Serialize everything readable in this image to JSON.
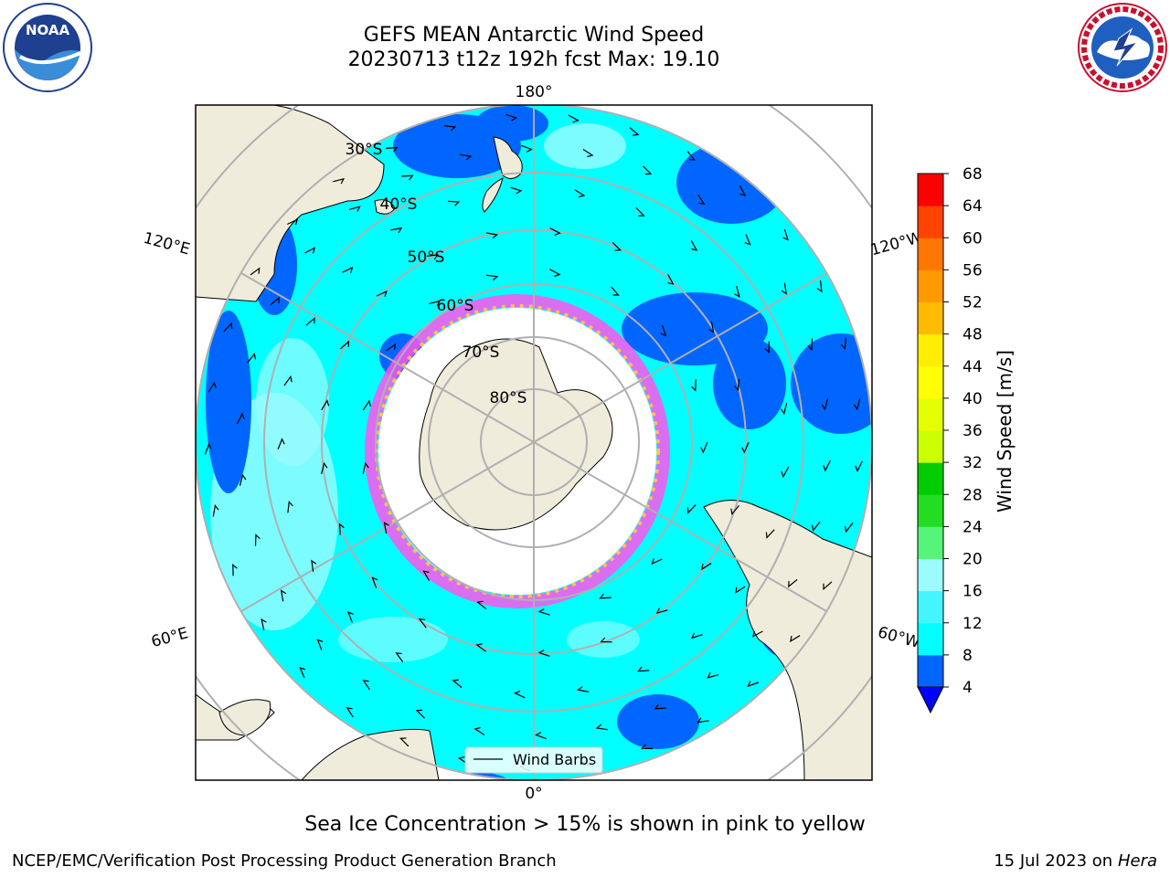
{
  "title_line1": "GEFS MEAN Antarctic Wind Speed",
  "title_line2": "20230713 t12z 192h fcst   Max: 19.10",
  "logos": {
    "left": "noaa-logo",
    "right": "nws-logo"
  },
  "map": {
    "projection": "south-polar-stereographic",
    "lon_labels": {
      "top": "180°",
      "bottom": "0°",
      "left_upper": "120°E",
      "left_lower": "60°E",
      "right_upper": "120°W",
      "right_lower": "60°W"
    },
    "lat_labels": [
      "30°S",
      "40°S",
      "50°S",
      "60°S",
      "70°S",
      "80°S"
    ],
    "legend_label": "Wind Barbs"
  },
  "colorbar": {
    "label": "Wind Speed [m/s]",
    "ticks": [
      "4",
      "8",
      "12",
      "16",
      "20",
      "24",
      "28",
      "32",
      "36",
      "40",
      "44",
      "48",
      "52",
      "56",
      "60",
      "64",
      "68"
    ],
    "colors": [
      "#0066ff",
      "#00ffff",
      "#44f5ff",
      "#9bfbff",
      "#55f57a",
      "#22dd22",
      "#00cc00",
      "#ccff00",
      "#e6ff00",
      "#ffff00",
      "#ffee00",
      "#ffbb00",
      "#ff9900",
      "#ff7700",
      "#ff4400",
      "#ff0000"
    ],
    "extend_color": "#0000ff"
  },
  "caption": "Sea Ice Concentration > 15% is shown in pink to yellow",
  "footer_left": "NCEP/EMC/Verification Post Processing Product Generation Branch",
  "footer_date": "15 Jul 2023 on ",
  "footer_machine": "Hera"
}
